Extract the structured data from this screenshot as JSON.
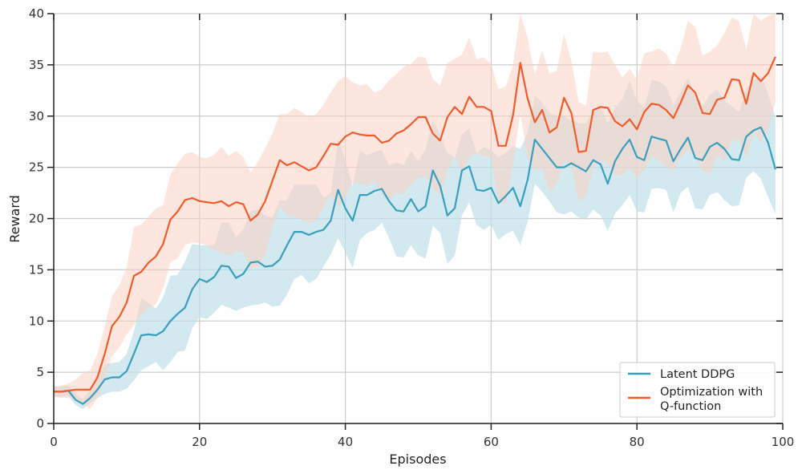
{
  "chart_data": {
    "type": "line",
    "title": "",
    "xlabel": "Episodes",
    "ylabel": "Reward",
    "xlim": [
      0,
      100
    ],
    "ylim": [
      0,
      40
    ],
    "xticks": [
      0,
      20,
      40,
      60,
      80,
      100
    ],
    "yticks": [
      0,
      5,
      10,
      15,
      20,
      25,
      30,
      35,
      40
    ],
    "grid": true,
    "legend_position": "bottom-right",
    "series": [
      {
        "name": "Latent DDPG",
        "color": "#3a9fbf",
        "band_color": "#bfe0e8",
        "x": [
          0,
          1,
          2,
          3,
          4,
          5,
          6,
          7,
          8,
          9,
          10,
          11,
          12,
          13,
          14,
          15,
          16,
          17,
          18,
          19,
          20,
          21,
          22,
          23,
          24,
          25,
          26,
          27,
          28,
          29,
          30,
          31,
          32,
          33,
          34,
          35,
          36,
          37,
          38,
          39,
          40,
          41,
          42,
          43,
          44,
          45,
          46,
          47,
          48,
          49,
          50,
          51,
          52,
          53,
          54,
          55,
          56,
          57,
          58,
          59,
          60,
          61,
          62,
          63,
          64,
          65,
          66,
          67,
          68,
          69,
          70,
          71,
          72,
          73,
          74,
          75,
          76,
          77,
          78,
          79,
          80,
          81,
          82,
          83,
          84,
          85,
          86,
          87,
          88,
          89,
          90,
          91,
          92,
          93,
          94,
          95,
          96,
          97,
          98,
          99
        ],
        "mean": [
          3.1,
          3.1,
          3.2,
          2.3,
          1.9,
          2.5,
          3.3,
          4.3,
          4.5,
          4.5,
          5.1,
          6.8,
          8.6,
          8.7,
          8.6,
          9.0,
          10.0,
          10.7,
          11.3,
          13.1,
          14.1,
          13.8,
          14.3,
          15.4,
          15.3,
          14.2,
          14.6,
          15.7,
          15.8,
          15.3,
          15.4,
          16.0,
          17.4,
          18.7,
          18.7,
          18.4,
          18.7,
          18.9,
          19.8,
          22.8,
          21.0,
          19.8,
          22.3,
          22.3,
          22.7,
          22.9,
          21.7,
          20.8,
          20.7,
          21.9,
          20.7,
          21.2,
          24.7,
          23.2,
          20.3,
          21.0,
          24.7,
          25.1,
          22.8,
          22.7,
          23.0,
          21.5,
          22.2,
          23.0,
          21.2,
          23.8,
          27.7,
          26.8,
          25.9,
          25.0,
          25.0,
          25.4,
          25.0,
          24.6,
          25.7,
          25.3,
          23.4,
          25.6,
          26.8,
          27.7,
          26.0,
          25.7,
          28.0,
          27.8,
          27.6,
          25.6,
          26.8,
          27.9,
          25.9,
          25.7,
          27.0,
          27.4,
          26.8,
          25.8,
          25.7,
          28.0,
          28.6,
          28.9,
          27.4,
          24.8
        ],
        "upper": [
          3.6,
          3.6,
          3.7,
          2.9,
          2.4,
          3.2,
          4.5,
          5.8,
          5.9,
          6.0,
          6.8,
          9.0,
          12.2,
          11.8,
          11.2,
          12.3,
          14.4,
          14.5,
          15.8,
          17.5,
          17.4,
          17.4,
          17.4,
          19.6,
          19.6,
          18.2,
          18.9,
          20.7,
          20.9,
          20.3,
          20.1,
          21.8,
          21.8,
          23.3,
          23.3,
          23.3,
          23.3,
          22.0,
          22.5,
          27.8,
          25.7,
          23.2,
          26.6,
          26.2,
          26.5,
          26.7,
          25.2,
          25.5,
          25.2,
          26.6,
          25.6,
          26.8,
          29.6,
          28.2,
          26.4,
          26.0,
          28.2,
          28.8,
          26.4,
          27.0,
          26.7,
          26.0,
          26.4,
          27.1,
          26.8,
          28.4,
          32.0,
          31.3,
          30.3,
          30.0,
          30.0,
          29.6,
          29.3,
          29.3,
          30.5,
          30.9,
          29.3,
          30.8,
          31.7,
          33.4,
          31.5,
          30.8,
          33.5,
          33.4,
          32.9,
          31.1,
          32.3,
          33.8,
          32.1,
          31.0,
          32.1,
          32.6,
          31.5,
          31.0,
          30.4,
          32.7,
          33.5,
          34.0,
          32.2,
          29.9
        ],
        "lower": [
          2.6,
          2.6,
          2.7,
          1.8,
          1.4,
          2.0,
          2.5,
          2.9,
          3.1,
          3.1,
          3.4,
          4.2,
          5.2,
          5.6,
          6.0,
          5.2,
          6.0,
          7.0,
          7.1,
          9.3,
          10.4,
          10.2,
          10.8,
          11.6,
          11.3,
          11.0,
          11.3,
          11.5,
          11.6,
          11.8,
          11.4,
          11.5,
          12.6,
          14.1,
          14.5,
          13.7,
          14.1,
          15.3,
          16.5,
          18.1,
          16.7,
          15.2,
          17.9,
          18.6,
          18.9,
          19.6,
          18.1,
          16.3,
          16.2,
          17.4,
          16.4,
          16.1,
          19.3,
          18.6,
          15.6,
          16.4,
          20.3,
          21.6,
          19.4,
          18.9,
          19.4,
          17.9,
          18.5,
          18.8,
          17.4,
          19.7,
          23.4,
          22.6,
          21.7,
          20.6,
          20.4,
          20.7,
          20.1,
          19.9,
          20.9,
          20.3,
          18.8,
          20.5,
          21.3,
          22.3,
          20.7,
          20.6,
          22.9,
          23.0,
          22.8,
          20.6,
          22.5,
          23.1,
          21.0,
          20.9,
          22.3,
          22.6,
          21.8,
          21.2,
          21.3,
          24.0,
          24.6,
          23.9,
          22.1,
          20.4
        ]
      },
      {
        "name": "Optimization with Q-function",
        "color": "#f05c2c",
        "band_color": "#fcd2c2",
        "x": [
          0,
          1,
          2,
          3,
          4,
          5,
          6,
          7,
          8,
          9,
          10,
          11,
          12,
          13,
          14,
          15,
          16,
          17,
          18,
          19,
          20,
          21,
          22,
          23,
          24,
          25,
          26,
          27,
          28,
          29,
          30,
          31,
          32,
          33,
          34,
          35,
          36,
          37,
          38,
          39,
          40,
          41,
          42,
          43,
          44,
          45,
          46,
          47,
          48,
          49,
          50,
          51,
          52,
          53,
          54,
          55,
          56,
          57,
          58,
          59,
          60,
          61,
          62,
          63,
          64,
          65,
          66,
          67,
          68,
          69,
          70,
          71,
          72,
          73,
          74,
          75,
          76,
          77,
          78,
          79,
          80,
          81,
          82,
          83,
          84,
          85,
          86,
          87,
          88,
          89,
          90,
          91,
          92,
          93,
          94,
          95,
          96,
          97,
          98,
          99
        ],
        "mean": [
          3.1,
          3.1,
          3.2,
          3.3,
          3.3,
          3.3,
          4.5,
          6.8,
          9.5,
          10.4,
          11.8,
          14.4,
          14.8,
          15.7,
          16.3,
          17.5,
          19.9,
          20.7,
          21.8,
          22.0,
          21.7,
          21.6,
          21.5,
          21.7,
          21.2,
          21.6,
          21.4,
          19.8,
          20.4,
          21.7,
          23.7,
          25.7,
          25.2,
          25.5,
          25.1,
          24.7,
          25.0,
          26.1,
          27.3,
          27.2,
          28.0,
          28.4,
          28.2,
          28.1,
          28.1,
          27.4,
          27.6,
          28.3,
          28.6,
          29.2,
          29.9,
          29.9,
          28.3,
          27.6,
          29.9,
          30.9,
          30.2,
          31.9,
          30.9,
          30.9,
          30.5,
          27.1,
          27.1,
          30.1,
          35.2,
          31.7,
          29.4,
          30.6,
          28.4,
          28.9,
          31.8,
          30.3,
          26.5,
          26.6,
          30.6,
          30.9,
          30.8,
          29.5,
          29.0,
          29.7,
          28.7,
          30.4,
          31.2,
          31.1,
          30.6,
          29.8,
          31.3,
          33.0,
          32.3,
          30.3,
          30.2,
          31.6,
          31.8,
          33.6,
          33.5,
          31.2,
          34.2,
          33.4,
          34.2,
          35.8
        ],
        "upper": [
          3.6,
          3.7,
          3.9,
          4.3,
          4.9,
          5.2,
          6.8,
          9.5,
          12.4,
          13.5,
          15.2,
          19.2,
          19.4,
          20.2,
          21.0,
          21.3,
          24.3,
          25.4,
          26.3,
          26.5,
          26.0,
          25.9,
          26.2,
          27.0,
          26.1,
          26.6,
          26.0,
          24.5,
          25.5,
          26.9,
          28.3,
          30.2,
          30.2,
          30.8,
          30.4,
          29.9,
          30.2,
          31.1,
          32.3,
          33.4,
          33.9,
          33.3,
          33.0,
          33.1,
          32.3,
          32.6,
          33.5,
          34.1,
          34.8,
          35.1,
          35.8,
          35.7,
          33.6,
          33.0,
          35.2,
          35.6,
          36.0,
          37.7,
          35.6,
          35.7,
          35.1,
          32.6,
          32.9,
          35.0,
          40.0,
          37.6,
          34.1,
          36.4,
          34.2,
          34.4,
          38.0,
          35.4,
          31.4,
          31.0,
          36.3,
          36.2,
          36.3,
          35.0,
          33.8,
          34.6,
          33.6,
          36.1,
          36.3,
          36.6,
          36.1,
          34.8,
          36.6,
          39.3,
          38.7,
          35.9,
          36.3,
          36.9,
          38.1,
          39.6,
          39.3,
          36.5,
          40.0,
          39.3,
          39.8,
          40.2
        ],
        "lower": [
          2.6,
          2.5,
          2.5,
          2.3,
          2.0,
          1.4,
          2.5,
          4.4,
          6.6,
          7.4,
          8.7,
          9.6,
          10.6,
          11.3,
          11.6,
          13.2,
          15.7,
          16.1,
          17.4,
          17.7,
          17.6,
          17.4,
          16.9,
          16.7,
          16.4,
          16.8,
          16.8,
          15.1,
          15.3,
          16.5,
          19.1,
          21.2,
          20.3,
          20.2,
          19.9,
          19.6,
          19.8,
          21.1,
          22.3,
          21.1,
          22.1,
          23.5,
          23.4,
          23.2,
          23.7,
          22.3,
          21.8,
          22.5,
          22.4,
          23.3,
          24.0,
          24.1,
          22.9,
          22.3,
          24.7,
          26.2,
          24.4,
          26.0,
          26.3,
          26.1,
          25.9,
          21.6,
          21.4,
          25.2,
          30.4,
          25.8,
          24.7,
          24.9,
          22.6,
          23.4,
          25.6,
          25.2,
          21.7,
          22.1,
          25.0,
          25.6,
          25.4,
          24.1,
          24.3,
          24.9,
          23.9,
          24.8,
          26.1,
          25.6,
          25.1,
          24.7,
          26.0,
          26.7,
          25.9,
          24.8,
          24.2,
          26.2,
          25.6,
          27.6,
          27.7,
          25.9,
          28.4,
          27.5,
          28.6,
          31.4
        ]
      }
    ]
  }
}
